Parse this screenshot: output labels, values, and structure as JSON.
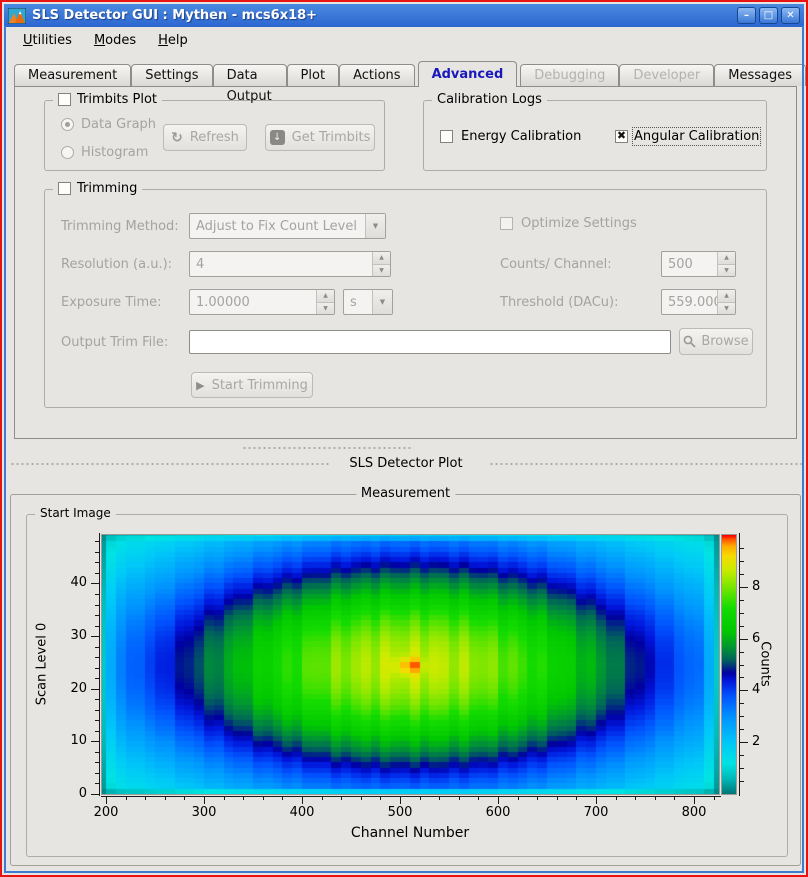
{
  "window": {
    "title": "SLS Detector GUI : Mythen - mcs6x18+",
    "controls": {
      "minimize": "–",
      "maximize": "□",
      "close": "✕"
    }
  },
  "menu": {
    "items": [
      {
        "label": "Utilities"
      },
      {
        "label": "Modes"
      },
      {
        "label": "Help"
      }
    ]
  },
  "tabs": [
    {
      "label": "Measurement",
      "state": "normal"
    },
    {
      "label": "Settings",
      "state": "normal"
    },
    {
      "label": "Data Output",
      "state": "normal"
    },
    {
      "label": "Plot",
      "state": "normal"
    },
    {
      "label": "Actions",
      "state": "normal"
    },
    {
      "label": "Advanced",
      "state": "selected"
    },
    {
      "label": "Debugging",
      "state": "disabled"
    },
    {
      "label": "Developer",
      "state": "disabled"
    },
    {
      "label": "Messages",
      "state": "normal"
    }
  ],
  "advanced": {
    "trimbits": {
      "title": "Trimbits Plot",
      "enabled": false,
      "data_graph_label": "Data Graph",
      "data_graph_selected": true,
      "histogram_label": "Histogram",
      "histogram_selected": false,
      "refresh_label": "Refresh",
      "get_trimbits_label": "Get Trimbits"
    },
    "calibration": {
      "title": "Calibration Logs",
      "energy_label": "Energy Calibration",
      "energy_checked": false,
      "angular_label": "Angular Calibration",
      "angular_checked": true
    },
    "trimming": {
      "title": "Trimming",
      "enabled": false,
      "method_label": "Trimming Method:",
      "method_value": "Adjust to Fix Count Level",
      "optimize_label": "Optimize Settings",
      "optimize_checked": false,
      "resolution_label": "Resolution (a.u.):",
      "resolution_value": "4",
      "counts_label": "Counts/ Channel:",
      "counts_value": "500",
      "exposure_label": "Exposure Time:",
      "exposure_value": "1.00000",
      "exposure_unit": "s",
      "threshold_label": "Threshold (DACu):",
      "threshold_value": "559.000",
      "output_label": "Output Trim File:",
      "output_value": "",
      "browse_label": "Browse",
      "start_label": "Start Trimming"
    }
  },
  "plot_dock_label": "SLS Detector Plot",
  "measurement_group_title": "Measurement",
  "start_image_group_title": "Start Image",
  "chart_data": {
    "type": "heatmap",
    "xlabel": "Channel Number",
    "ylabel": "Scan Level 0",
    "colorbar_label": "Counts",
    "x_range": [
      196,
      826
    ],
    "y_range": [
      0,
      49.2
    ],
    "z_range": [
      0,
      10
    ],
    "x_ticks": [
      200,
      300,
      400,
      500,
      600,
      700,
      800
    ],
    "x_minor_step": 20,
    "y_ticks": [
      0,
      10,
      20,
      30,
      40
    ],
    "y_minor_step": 2,
    "colorbar_ticks": [
      2,
      4,
      6,
      8
    ],
    "colorbar_minor_step": 0.5,
    "grid": false,
    "legend": "colorbar-right",
    "cell_size": {
      "channel": 10,
      "scan_level": 1
    },
    "distribution": {
      "model": "2d-gaussian-plus-hotspot",
      "amplitude": 8.6,
      "center": {
        "channel": 512,
        "scan_level": 24.3
      },
      "sigma": {
        "channel": 215,
        "scan_level": 17.5
      },
      "hotspot": {
        "channel": 510,
        "scan_level": 24.3,
        "amplitude": 1.15,
        "sigma_channel": 9,
        "sigma_scan": 1.1
      },
      "edge_attenuation": {
        "first_last_column": 0.28,
        "second_columns": 0.82,
        "bottom_row": 0.55,
        "top_row": 0.5
      },
      "peak_value": 9.75,
      "corner_value": 0.4
    },
    "colormap_stops": [
      [
        0.0,
        "#007474"
      ],
      [
        0.06,
        "#00b8b8"
      ],
      [
        0.12,
        "#00e4e4"
      ],
      [
        0.2,
        "#00c8f8"
      ],
      [
        0.3,
        "#0092ff"
      ],
      [
        0.38,
        "#0054ff"
      ],
      [
        0.44,
        "#0016dc"
      ],
      [
        0.47,
        "#0000a0"
      ],
      [
        0.52,
        "#00645a"
      ],
      [
        0.57,
        "#009632"
      ],
      [
        0.63,
        "#00c800"
      ],
      [
        0.72,
        "#14dc00"
      ],
      [
        0.8,
        "#78e600"
      ],
      [
        0.87,
        "#cdeb00"
      ],
      [
        0.92,
        "#f5dc00"
      ],
      [
        0.96,
        "#ffaa00"
      ],
      [
        0.985,
        "#ff5500"
      ],
      [
        1.0,
        "#ff0000"
      ]
    ]
  }
}
